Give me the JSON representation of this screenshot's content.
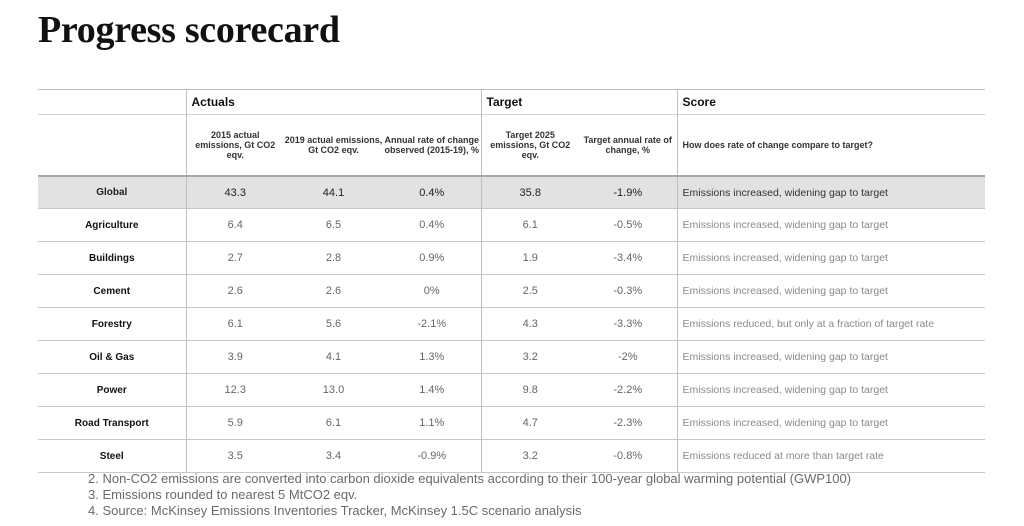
{
  "title": "Progress scorecard",
  "groups": {
    "actuals": "Actuals",
    "target": "Target",
    "score": "Score"
  },
  "columns": {
    "c2015": "2015 actual emissions, Gt CO2 eqv.",
    "c2019": "2019 actual emissions, Gt CO2 eqv.",
    "rate": "Annual rate of change observed (2015-19), %",
    "t2025": "Target 2025 emissions, Gt CO2 eqv.",
    "trate": "Target annual rate of change, %",
    "score": "How does rate of change compare to target?"
  },
  "rows": [
    {
      "name": "Global",
      "e2015": "43.3",
      "e2019": "44.1",
      "rate": "0.4%",
      "t2025": "35.8",
      "trate": "-1.9%",
      "score": "Emissions increased, widening gap to target"
    },
    {
      "name": "Agriculture",
      "e2015": "6.4",
      "e2019": "6.5",
      "rate": "0.4%",
      "t2025": "6.1",
      "trate": "-0.5%",
      "score": "Emissions increased, widening gap to target"
    },
    {
      "name": "Buildings",
      "e2015": "2.7",
      "e2019": "2.8",
      "rate": "0.9%",
      "t2025": "1.9",
      "trate": "-3.4%",
      "score": "Emissions increased, widening gap to target"
    },
    {
      "name": "Cement",
      "e2015": "2.6",
      "e2019": "2.6",
      "rate": "0%",
      "t2025": "2.5",
      "trate": "-0.3%",
      "score": "Emissions increased, widening gap to target"
    },
    {
      "name": "Forestry",
      "e2015": "6.1",
      "e2019": "5.6",
      "rate": "-2.1%",
      "t2025": "4.3",
      "trate": "-3.3%",
      "score": "Emissions reduced, but only at a fraction of target rate"
    },
    {
      "name": "Oil & Gas",
      "e2015": "3.9",
      "e2019": "4.1",
      "rate": "1.3%",
      "t2025": "3.2",
      "trate": "-2%",
      "score": "Emissions increased, widening gap to target"
    },
    {
      "name": "Power",
      "e2015": "12.3",
      "e2019": "13.0",
      "rate": "1.4%",
      "t2025": "9.8",
      "trate": "-2.2%",
      "score": "Emissions increased, widening gap to target"
    },
    {
      "name": "Road Transport",
      "e2015": "5.9",
      "e2019": "6.1",
      "rate": "1.1%",
      "t2025": "4.7",
      "trate": "-2.3%",
      "score": "Emissions increased, widening gap to target"
    },
    {
      "name": "Steel",
      "e2015": "3.5",
      "e2019": "3.4",
      "rate": "-0.9%",
      "t2025": "3.2",
      "trate": "-0.8%",
      "score": "Emissions reduced at more than target rate"
    }
  ],
  "notes": [
    "2. Non-CO2 emissions are converted into carbon dioxide equivalents according to their 100-year global warming potential (GWP100)",
    "3. Emissions rounded to nearest 5 MtCO2 eqv.",
    "4. Source: McKinsey Emissions Inventories Tracker, McKinsey 1.5C scenario analysis"
  ]
}
